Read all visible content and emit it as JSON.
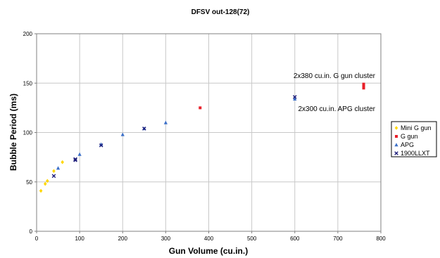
{
  "chart_data": {
    "type": "scatter",
    "title": "DFSV out-128(72)",
    "xlabel": "Gun Volume (cu.in.)",
    "ylabel": "Bubble Period (ms)",
    "xlim": [
      0,
      800
    ],
    "ylim": [
      0,
      200
    ],
    "x_ticks": [
      "0",
      "100",
      "200",
      "300",
      "400",
      "500",
      "600",
      "700",
      "800"
    ],
    "y_ticks": [
      "0",
      "50",
      "100",
      "150",
      "200"
    ],
    "grid": "horizontal and vertical",
    "legend_position": "right",
    "annotations": [
      {
        "text": "2x380 cu.in. G gun cluster",
        "x": 760,
        "y": 150
      },
      {
        "text": "2x300 cu.in. APG cluster",
        "x": 600,
        "y": 135
      }
    ],
    "series": [
      {
        "name": "Mini G gun",
        "color": "#FFD700",
        "marker": "diamond",
        "points": [
          [
            10,
            41
          ],
          [
            20,
            48
          ],
          [
            25,
            51
          ],
          [
            40,
            61
          ],
          [
            60,
            70
          ]
        ]
      },
      {
        "name": "G gun",
        "color": "#E8202A",
        "marker": "square",
        "points": [
          [
            380,
            125
          ],
          [
            760,
            145
          ],
          [
            760,
            147
          ],
          [
            760,
            149
          ]
        ]
      },
      {
        "name": "APG",
        "color": "#3B6FC8",
        "marker": "triangle",
        "points": [
          [
            50,
            64
          ],
          [
            100,
            78
          ],
          [
            150,
            88
          ],
          [
            200,
            98
          ],
          [
            250,
            104
          ],
          [
            300,
            110
          ],
          [
            600,
            134
          ]
        ]
      },
      {
        "name": "1900LLXT",
        "color": "#1C1C7A",
        "marker": "x",
        "points": [
          [
            40,
            56
          ],
          [
            90,
            72
          ],
          [
            90,
            73
          ],
          [
            150,
            87
          ],
          [
            250,
            104
          ],
          [
            600,
            136
          ]
        ]
      }
    ]
  }
}
